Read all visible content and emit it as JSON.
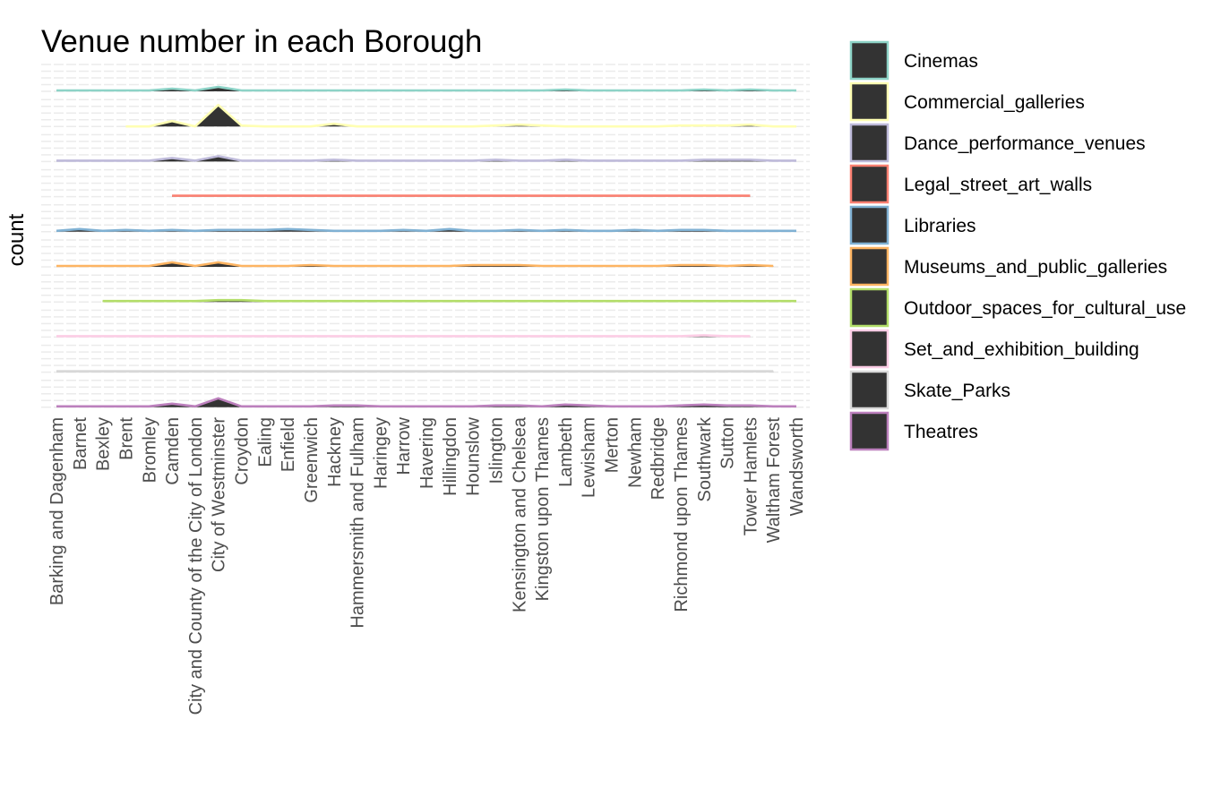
{
  "chart_data": {
    "type": "area",
    "title": "Venue number in each Borough",
    "ylabel": "count",
    "xlabel": "",
    "grid": true,
    "legend_position": "right",
    "fill_color": "#333333",
    "categories": [
      "Barking and Dagenham",
      "Barnet",
      "Bexley",
      "Brent",
      "Bromley",
      "Camden",
      "City and County of the City of London",
      "City of Westminster",
      "Croydon",
      "Ealing",
      "Enfield",
      "Greenwich",
      "Hackney",
      "Hammersmith and Fulham",
      "Haringey",
      "Harrow",
      "Havering",
      "Hillingdon",
      "Hounslow",
      "Islington",
      "Kensington and Chelsea",
      "Kingston upon Thames",
      "Lambeth",
      "Lewisham",
      "Merton",
      "Newham",
      "Redbridge",
      "Richmond upon Thames",
      "Southwark",
      "Sutton",
      "Tower Hamlets",
      "Waltham Forest",
      "Wandsworth"
    ],
    "series": [
      {
        "name": "Cinemas",
        "color": "#8dd3c7",
        "values": [
          1,
          1,
          1,
          1,
          1,
          3,
          1,
          5,
          1,
          1,
          1,
          1,
          1,
          1,
          1,
          1,
          1,
          1,
          1,
          1,
          1,
          1,
          2,
          1,
          1,
          1,
          1,
          1,
          2,
          1,
          2,
          1,
          1
        ]
      },
      {
        "name": "Commercial_galleries",
        "color": "#ffffb3",
        "values": [
          null,
          null,
          null,
          0,
          0,
          6,
          0,
          24,
          1,
          0,
          0,
          0,
          3,
          0,
          0,
          0,
          0,
          0,
          0,
          1,
          2,
          1,
          0,
          0,
          0,
          0,
          0,
          1,
          1,
          1,
          2,
          0,
          0
        ]
      },
      {
        "name": "Dance_performance_venues",
        "color": "#bebada",
        "values": [
          1,
          1,
          1,
          1,
          1,
          4,
          1,
          6,
          1,
          1,
          1,
          1,
          2,
          1,
          1,
          1,
          1,
          1,
          1,
          2,
          1,
          1,
          2,
          1,
          1,
          1,
          1,
          1,
          2,
          2,
          2,
          1,
          1
        ]
      },
      {
        "name": "Legal_street_art_walls",
        "color": "#fb8072",
        "values": [
          null,
          null,
          null,
          null,
          null,
          1,
          1,
          1,
          1,
          1,
          1,
          1,
          1,
          1,
          1,
          1,
          1,
          1,
          1,
          1,
          1,
          1,
          1,
          1,
          1,
          1,
          1,
          1,
          1,
          1,
          1,
          null,
          null
        ]
      },
      {
        "name": "Libraries",
        "color": "#80b1d3",
        "values": [
          1,
          3,
          1,
          2,
          1,
          2,
          1,
          2,
          2,
          2,
          3,
          2,
          1,
          1,
          1,
          2,
          1,
          3,
          1,
          1,
          2,
          1,
          2,
          1,
          1,
          2,
          1,
          2,
          2,
          1,
          1,
          1,
          1
        ]
      },
      {
        "name": "Museums_and_public_galleries",
        "color": "#fdb462",
        "values": [
          1,
          1,
          1,
          1,
          1,
          5,
          1,
          5,
          1,
          1,
          1,
          2,
          1,
          1,
          1,
          1,
          1,
          1,
          2,
          2,
          2,
          1,
          1,
          1,
          1,
          1,
          1,
          2,
          2,
          1,
          2,
          1,
          null
        ]
      },
      {
        "name": "Outdoor_spaces_for_cultural_use",
        "color": "#b3de69",
        "values": [
          null,
          null,
          1,
          1,
          1,
          1,
          1,
          2,
          2,
          1,
          1,
          1,
          1,
          1,
          1,
          1,
          1,
          1,
          1,
          1,
          1,
          1,
          1,
          1,
          1,
          1,
          1,
          1,
          1,
          1,
          1,
          1,
          1
        ]
      },
      {
        "name": "Set_and_exhibition_building",
        "color": "#fccde5",
        "values": [
          1,
          1,
          1,
          1,
          1,
          1,
          1,
          1,
          1,
          1,
          1,
          1,
          1,
          1,
          1,
          1,
          1,
          1,
          1,
          1,
          1,
          1,
          1,
          1,
          1,
          1,
          1,
          1,
          2,
          1,
          1,
          null,
          null
        ]
      },
      {
        "name": "Skate_Parks",
        "color": "#d9d9d9",
        "values": [
          1,
          1,
          1,
          1,
          1,
          1,
          1,
          1,
          1,
          1,
          1,
          1,
          1,
          1,
          1,
          1,
          1,
          1,
          1,
          1,
          1,
          1,
          1,
          1,
          1,
          1,
          1,
          1,
          1,
          1,
          1,
          1,
          null
        ]
      },
      {
        "name": "Theatres",
        "color": "#bc80bd",
        "values": [
          1,
          1,
          1,
          1,
          1,
          4,
          1,
          10,
          1,
          1,
          1,
          1,
          2,
          2,
          1,
          1,
          1,
          1,
          1,
          2,
          2,
          1,
          3,
          2,
          1,
          1,
          1,
          2,
          3,
          2,
          2,
          1,
          1
        ]
      }
    ]
  }
}
